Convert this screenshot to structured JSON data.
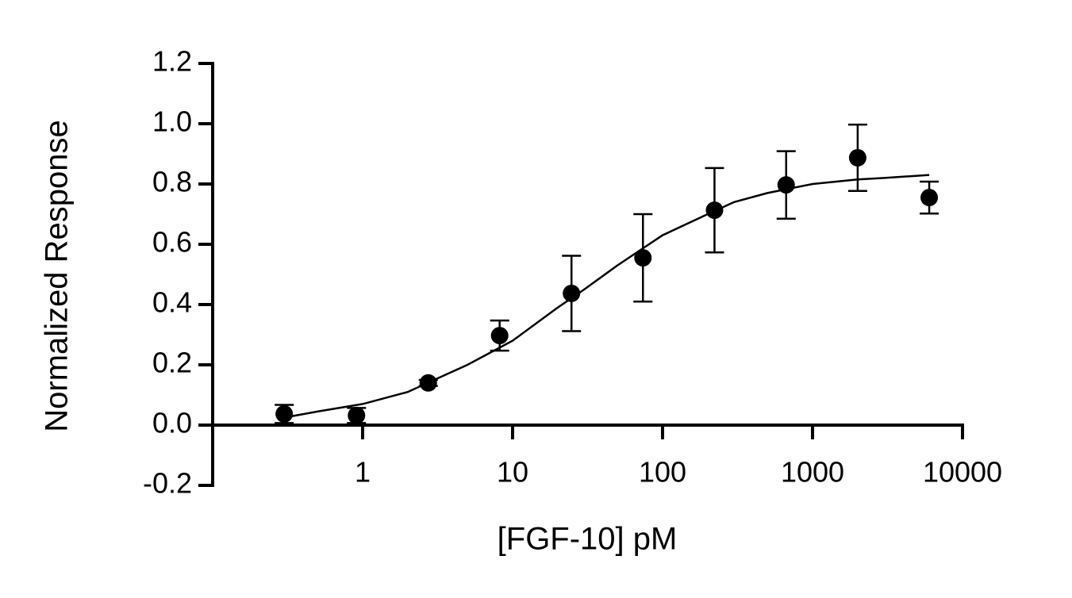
{
  "chart_data": {
    "type": "scatter",
    "x_label": "[FGF-10] pM",
    "y_label": "Normalized Response",
    "xscale": "log",
    "xlim": [
      0.1,
      10000
    ],
    "xticks": [
      1,
      10,
      100,
      1000,
      10000
    ],
    "ylim": [
      -0.2,
      1.2
    ],
    "yticks": [
      -0.2,
      {
        "value": 0,
        "label": "0.0"
      },
      0.2,
      0.4,
      0.6,
      0.8,
      {
        "value": 1,
        "label": "1.0"
      },
      1.2
    ],
    "color": "#000000",
    "x": [
      0.3,
      0.91,
      2.74,
      8.2,
      24.7,
      74,
      222,
      667,
      2000,
      6000
    ],
    "values": [
      0.037,
      0.032,
      0.14,
      0.297,
      0.437,
      0.555,
      0.713,
      0.797,
      0.887,
      0.755
    ],
    "errors": [
      0.03,
      0.025,
      0.01,
      0.05,
      0.125,
      0.145,
      0.14,
      0.112,
      0.11,
      0.053
    ],
    "curve": {
      "x": [
        0.3,
        0.5,
        1,
        2,
        3,
        5,
        10,
        20,
        30,
        50,
        100,
        200,
        300,
        500,
        1000,
        2000,
        3000,
        6000
      ],
      "values": [
        0.025,
        0.045,
        0.07,
        0.11,
        0.15,
        0.2,
        0.28,
        0.39,
        0.45,
        0.53,
        0.63,
        0.7,
        0.74,
        0.77,
        0.8,
        0.815,
        0.82,
        0.83
      ]
    }
  }
}
